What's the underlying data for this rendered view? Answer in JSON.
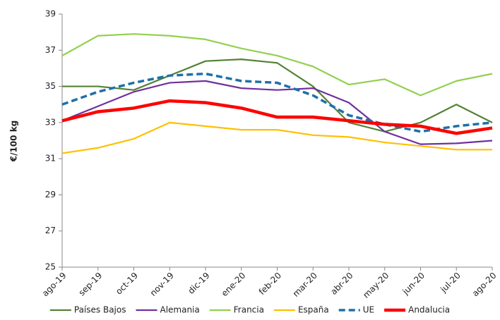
{
  "chart_data": {
    "type": "line",
    "y_label": "€/100 kg",
    "categories": [
      "ago-19",
      "sep-19",
      "oct-19",
      "nov-19",
      "dic-19",
      "ene-20",
      "feb-20",
      "mar-20",
      "abr-20",
      "may-20",
      "jun-20",
      "jul-20",
      "ago-20"
    ],
    "series": [
      {
        "name": "Países Bajos",
        "color": "#548235",
        "style": "solid",
        "values": [
          35.0,
          35.0,
          34.8,
          35.6,
          36.4,
          36.5,
          36.3,
          35.0,
          33.0,
          32.5,
          33.0,
          34.0,
          33.0
        ]
      },
      {
        "name": "Alemania",
        "color": "#7030a0",
        "style": "solid",
        "values": [
          33.1,
          33.9,
          34.7,
          35.2,
          35.3,
          34.9,
          34.8,
          34.9,
          34.1,
          32.5,
          31.8,
          31.85,
          32.0
        ]
      },
      {
        "name": "Francia",
        "color": "#92d050",
        "style": "solid",
        "values": [
          36.7,
          37.8,
          37.9,
          37.8,
          37.6,
          37.1,
          36.7,
          36.1,
          35.1,
          35.4,
          34.5,
          35.3,
          35.7
        ]
      },
      {
        "name": "España",
        "color": "#ffc000",
        "style": "solid",
        "values": [
          31.3,
          31.6,
          32.1,
          33.0,
          32.8,
          32.6,
          32.6,
          32.3,
          32.2,
          31.9,
          31.7,
          31.5,
          31.5
        ]
      },
      {
        "name": "UE",
        "color": "#1f6fa8",
        "style": "dashed",
        "values": [
          34.0,
          34.7,
          35.2,
          35.6,
          35.7,
          35.3,
          35.2,
          34.5,
          33.4,
          32.9,
          32.5,
          32.8,
          33.0
        ]
      },
      {
        "name": "Andalucia",
        "color": "#ff0000",
        "style": "thick",
        "values": [
          33.1,
          33.6,
          33.8,
          34.2,
          34.1,
          33.8,
          33.3,
          33.3,
          33.1,
          32.9,
          32.8,
          32.4,
          32.7
        ]
      }
    ],
    "ylim": [
      25,
      39
    ],
    "yticks": [
      25,
      27,
      29,
      31,
      33,
      35,
      37,
      39
    ],
    "grid": false,
    "legend": "bottom"
  }
}
